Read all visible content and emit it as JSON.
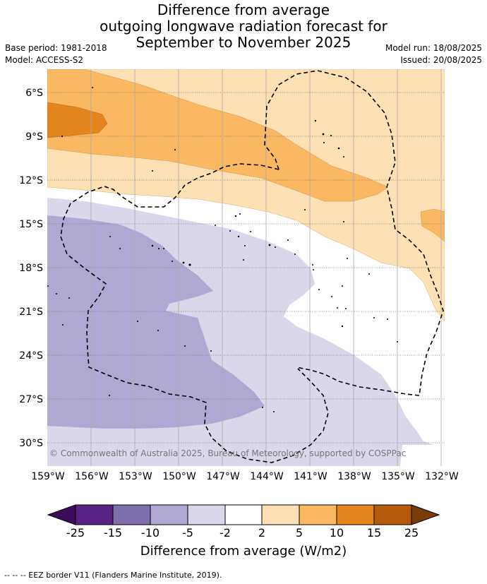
{
  "header": {
    "title_line1": "Difference from average",
    "title_line2": "outgoing longwave radiation forecast for",
    "title_line3": "September to November 2025",
    "base_period": "Base period: 1981-2018",
    "model": "Model: ACCESS-S2",
    "model_run": "Model run: 18/08/2025",
    "issued": "Issued: 20/08/2025"
  },
  "map": {
    "lat_labels": [
      "6°S",
      "9°S",
      "12°S",
      "15°S",
      "18°S",
      "21°S",
      "24°S",
      "27°S",
      "30°S"
    ],
    "lon_labels": [
      "159°W",
      "156°W",
      "153°W",
      "150°W",
      "147°W",
      "144°W",
      "141°W",
      "138°W",
      "135°W",
      "132°W"
    ],
    "copyright": "© Commonwealth of Australia 2025, Bureau of Meteorology, supported by COSPPac"
  },
  "legend": {
    "title": "Difference from average (W/m2)",
    "ticks": [
      "-25",
      "-15",
      "-10",
      "-5",
      "-2",
      "2",
      "5",
      "10",
      "15",
      "25"
    ],
    "colors": [
      "#3f0a5e",
      "#5a2285",
      "#7f6fae",
      "#b0a8d2",
      "#d8d8ea",
      "#ffffff",
      "#fde0b4",
      "#fbb862",
      "#e5851d",
      "#b45a0b",
      "#7a3b06"
    ]
  },
  "footnote": "--  --  -- EEZ border V11 (Flanders Marine Institute, 2019)."
}
